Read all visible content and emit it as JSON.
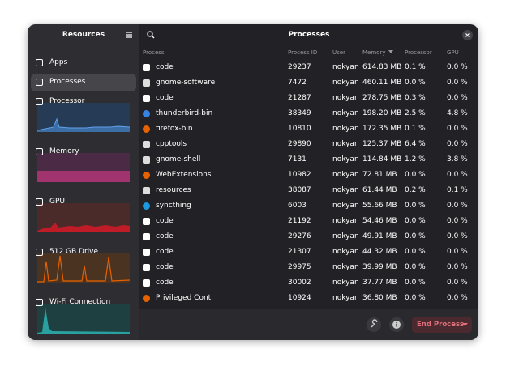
{
  "sidebar": {
    "title": "Resources",
    "items": [
      "Apps",
      "Processes",
      "Processor",
      "Memory",
      "GPU",
      "512 GB Drive",
      "Wi-Fi Connection"
    ]
  },
  "header": {
    "title": "Processes"
  },
  "table": {
    "columns": [
      "Process",
      "Process ID",
      "User",
      "Memory",
      "Processor",
      "GPU"
    ],
    "rows": [
      [
        "code",
        "29237",
        "nokyan",
        "614.83 MB",
        "0.1 %",
        "0.0 %"
      ],
      [
        "gnome-software",
        "7472",
        "nokyan",
        "460.11 MB",
        "0.0 %",
        "0.0 %"
      ],
      [
        "code",
        "21287",
        "nokyan",
        "278.75 MB",
        "0.3 %",
        "0.0 %"
      ],
      [
        "thunderbird-bin",
        "38349",
        "nokyan",
        "198.20 MB",
        "2.5 %",
        "4.8 %"
      ],
      [
        "firefox-bin",
        "10810",
        "nokyan",
        "172.35 MB",
        "0.1 %",
        "0.0 %"
      ],
      [
        "cpptools",
        "29890",
        "nokyan",
        "125.37 MB",
        "6.4 %",
        "0.0 %"
      ],
      [
        "gnome-shell",
        "7131",
        "nokyan",
        "114.84 MB",
        "1.2 %",
        "3.8 %"
      ],
      [
        "WebExtensions",
        "10982",
        "nokyan",
        "72.81 MB",
        "0.0 %",
        "0.0 %"
      ],
      [
        "resources",
        "38087",
        "nokyan",
        "61.44 MB",
        "0.2 %",
        "0.1 %"
      ],
      [
        "syncthing",
        "6003",
        "nokyan",
        "55.66 MB",
        "0.0 %",
        "0.0 %"
      ],
      [
        "code",
        "21192",
        "nokyan",
        "54.46 MB",
        "0.0 %",
        "0.0 %"
      ],
      [
        "code",
        "29276",
        "nokyan",
        "49.91 MB",
        "0.0 %",
        "0.0 %"
      ],
      [
        "code",
        "21307",
        "nokyan",
        "44.32 MB",
        "0.0 %",
        "0.0 %"
      ],
      [
        "code",
        "29975",
        "nokyan",
        "39.99 MB",
        "0.0 %",
        "0.0 %"
      ],
      [
        "code",
        "30002",
        "nokyan",
        "37.77 MB",
        "0.0 %",
        "0.0 %"
      ],
      [
        "Privileged Cont",
        "10924",
        "nokyan",
        "36.80 MB",
        "0.0 %",
        "0.0 %"
      ]
    ]
  },
  "footer": {
    "button": "End Process"
  }
}
